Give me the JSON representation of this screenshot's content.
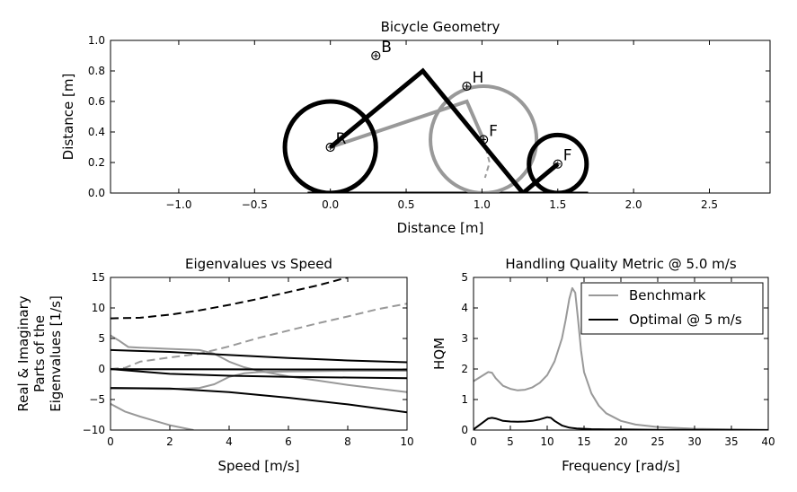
{
  "figure": {
    "colors": {
      "benchmark": "#999999",
      "optimal": "#000000"
    }
  },
  "chart_data": [
    {
      "id": "geometry",
      "type": "scatter",
      "title": "Bicycle Geometry",
      "xlabel": "Distance [m]",
      "ylabel": "Distance [m]",
      "xlim": [
        -1.45,
        2.9
      ],
      "ylim": [
        0.0,
        1.0
      ],
      "xticks": [
        -1.0,
        -0.5,
        0.0,
        0.5,
        1.0,
        1.5,
        2.0,
        2.5
      ],
      "xtick_labels": [
        "−1.0",
        "−0.5",
        "0.0",
        "0.5",
        "1.0",
        "1.5",
        "2.0",
        "2.5"
      ],
      "yticks": [
        0.0,
        0.2,
        0.4,
        0.6,
        0.8,
        1.0
      ],
      "ytick_labels": [
        "0.0",
        "0.2",
        "0.4",
        "0.6",
        "0.8",
        "1.0"
      ],
      "grid": false,
      "points": [
        {
          "label": "B",
          "x": 0.3,
          "y": 0.9
        },
        {
          "label": "H",
          "x": 0.9,
          "y": 0.7
        },
        {
          "label": "R",
          "x": 0.0,
          "y": 0.3
        },
        {
          "label": "F",
          "x": 1.01,
          "y": 0.35
        },
        {
          "label": "F",
          "x": 1.5,
          "y": 0.19
        }
      ],
      "shapes": {
        "benchmark": {
          "wheels": [
            {
              "cx": 0.0,
              "cy": 0.3,
              "r": 0.3
            },
            {
              "cx": 1.01,
              "cy": 0.35,
              "r": 0.35
            }
          ],
          "frame": [
            [
              0.0,
              0.3
            ],
            [
              0.9,
              0.6
            ],
            [
              1.01,
              0.35
            ]
          ],
          "dashed": [
            [
              1.01,
              0.35
            ],
            [
              1.05,
              0.2
            ],
            [
              1.02,
              0.1
            ]
          ]
        },
        "optimal": {
          "wheels": [
            {
              "cx": 0.0,
              "cy": 0.3,
              "r": 0.3
            },
            {
              "cx": 1.5,
              "cy": 0.19,
              "r": 0.19
            }
          ],
          "frame": [
            [
              0.0,
              0.3
            ],
            [
              0.61,
              0.8
            ],
            [
              1.27,
              0.0
            ],
            [
              1.5,
              0.19
            ]
          ]
        },
        "ground": [
          [
            -0.15,
            0.0
          ],
          [
            1.7,
            0.0
          ]
        ]
      }
    },
    {
      "id": "eigenvalues",
      "type": "line",
      "title": "Eigenvalues vs Speed",
      "xlabel": "Speed [m/s]",
      "ylabel_lines": [
        "Real & Imaginary",
        "Parts of the",
        "Eigenvalues [1/s]"
      ],
      "xlim": [
        0,
        10
      ],
      "ylim": [
        -10,
        15
      ],
      "xticks": [
        0,
        2,
        4,
        6,
        8,
        10
      ],
      "xtick_labels": [
        "0",
        "2",
        "4",
        "6",
        "8",
        "10"
      ],
      "yticks": [
        -10,
        -5,
        0,
        5,
        10,
        15
      ],
      "ytick_labels": [
        "−10",
        "−5",
        "0",
        "5",
        "10",
        "15"
      ],
      "grid": false,
      "series": [
        {
          "group": "benchmark",
          "style": "solid",
          "x": [
            0,
            0.3,
            0.6,
            1,
            1.5,
            2,
            2.5,
            3,
            3.5,
            4,
            4.5,
            5,
            6,
            7,
            8,
            9,
            10
          ],
          "y": [
            5.5,
            4.6,
            3.6,
            3.5,
            3.4,
            3.3,
            3.2,
            3.1,
            2.5,
            1.2,
            0.3,
            -0.3,
            -1.2,
            -1.9,
            -2.6,
            -3.2,
            -3.8
          ]
        },
        {
          "group": "benchmark",
          "style": "solid",
          "x": [
            0,
            1,
            2,
            3,
            3.5,
            4,
            4.5,
            5,
            6,
            7,
            8,
            9,
            10
          ],
          "y": [
            -3.2,
            -3.2,
            -3.3,
            -3.1,
            -2.5,
            -1.3,
            -0.7,
            -0.5,
            -0.4,
            -0.35,
            -0.3,
            -0.3,
            -0.3
          ]
        },
        {
          "group": "benchmark",
          "style": "solid",
          "x": [
            0,
            0.5,
            1,
            1.5,
            2,
            2.5,
            2.8
          ],
          "y": [
            -5.7,
            -7.0,
            -7.8,
            -8.5,
            -9.2,
            -9.7,
            -10
          ]
        },
        {
          "group": "benchmark",
          "style": "solid",
          "x": [
            0,
            1,
            2,
            3,
            4,
            5,
            6,
            7,
            8,
            9,
            10
          ],
          "y": [
            -0.05,
            -0.05,
            -0.05,
            -0.06,
            -0.06,
            -0.07,
            -0.07,
            -0.08,
            -0.08,
            -0.09,
            -0.09
          ]
        },
        {
          "group": "benchmark",
          "style": "dashed",
          "x": [
            0,
            0.5,
            1,
            2,
            3,
            4,
            5,
            6,
            7,
            8,
            9,
            10
          ],
          "y": [
            0,
            0.2,
            1.2,
            1.9,
            2.5,
            3.7,
            5.1,
            6.3,
            7.5,
            8.6,
            9.8,
            10.7
          ]
        },
        {
          "group": "optimal",
          "style": "dashed",
          "x": [
            0,
            1,
            2,
            3,
            4,
            5,
            6,
            7,
            8
          ],
          "y": [
            8.3,
            8.4,
            8.9,
            9.6,
            10.5,
            11.5,
            12.6,
            13.7,
            15
          ]
        },
        {
          "group": "optimal",
          "style": "solid",
          "x": [
            0,
            2,
            4,
            6,
            8,
            10
          ],
          "y": [
            3.1,
            2.8,
            2.3,
            1.8,
            1.4,
            1.1
          ]
        },
        {
          "group": "optimal",
          "style": "solid",
          "x": [
            0,
            2,
            4,
            6,
            8,
            10
          ],
          "y": [
            -3.1,
            -3.2,
            -3.8,
            -4.7,
            -5.8,
            -7.1
          ]
        },
        {
          "group": "optimal",
          "style": "solid",
          "x": [
            0,
            1,
            2,
            4,
            6,
            8,
            10
          ],
          "y": [
            0.0,
            -0.4,
            -0.8,
            -1.1,
            -1.3,
            -1.4,
            -1.5
          ]
        },
        {
          "group": "optimal",
          "style": "solid",
          "x": [
            0,
            2,
            4,
            6,
            8,
            10
          ],
          "y": [
            -0.05,
            -0.05,
            -0.06,
            -0.07,
            -0.08,
            -0.09
          ]
        }
      ]
    },
    {
      "id": "hqm",
      "type": "line",
      "title": "Handling Quality Metric @ 5.0 m/s",
      "xlabel": "Frequency [rad/s]",
      "ylabel": "HQM",
      "xlim": [
        0,
        40
      ],
      "ylim": [
        0,
        5
      ],
      "xticks": [
        0,
        5,
        10,
        15,
        20,
        25,
        30,
        35,
        40
      ],
      "xtick_labels": [
        "0",
        "5",
        "10",
        "15",
        "20",
        "25",
        "30",
        "35",
        "40"
      ],
      "yticks": [
        0,
        1,
        2,
        3,
        4,
        5
      ],
      "ytick_labels": [
        "0",
        "1",
        "2",
        "3",
        "4",
        "5"
      ],
      "grid": false,
      "legend": "top-right",
      "series": [
        {
          "name": "Benchmark",
          "group": "benchmark",
          "x": [
            0,
            1,
            2,
            2.5,
            3,
            4,
            5,
            6,
            7,
            8,
            9,
            10,
            11,
            12,
            12.5,
            13,
            13.4,
            13.8,
            14.2,
            14.6,
            15,
            16,
            17,
            18,
            20,
            22,
            25,
            30,
            35,
            40
          ],
          "y": [
            1.6,
            1.75,
            1.9,
            1.88,
            1.7,
            1.45,
            1.35,
            1.3,
            1.32,
            1.4,
            1.55,
            1.8,
            2.25,
            3.0,
            3.6,
            4.3,
            4.65,
            4.5,
            3.6,
            2.6,
            1.9,
            1.2,
            0.8,
            0.55,
            0.3,
            0.18,
            0.1,
            0.04,
            0.02,
            0.01
          ]
        },
        {
          "name": "Optimal @ 5 m/s",
          "group": "optimal",
          "x": [
            0,
            1,
            2,
            2.5,
            3,
            4,
            5,
            6,
            7,
            8,
            9,
            10,
            10.5,
            11,
            12,
            13,
            14,
            16,
            18,
            20,
            25,
            30,
            40
          ],
          "y": [
            0.02,
            0.2,
            0.38,
            0.4,
            0.38,
            0.3,
            0.28,
            0.27,
            0.28,
            0.3,
            0.35,
            0.42,
            0.4,
            0.3,
            0.15,
            0.08,
            0.05,
            0.03,
            0.02,
            0.02,
            0.01,
            0.01,
            0.0
          ]
        }
      ]
    }
  ]
}
